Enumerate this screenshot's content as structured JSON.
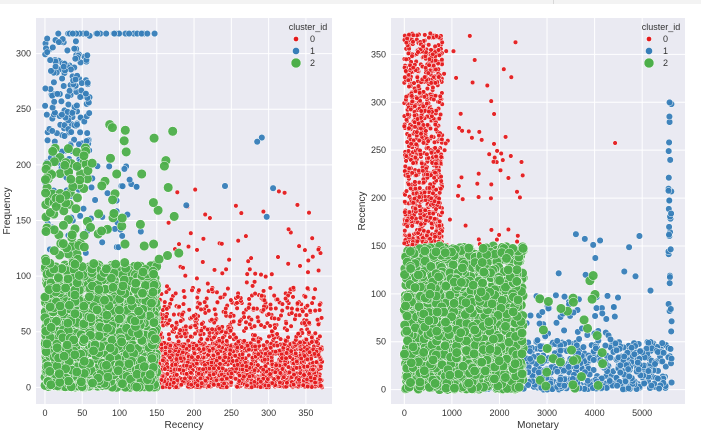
{
  "chart_data": [
    {
      "type": "scatter",
      "title": "",
      "xlabel": "Recency",
      "ylabel": "Frequency",
      "xlim": [
        -12,
        385
      ],
      "ylim": [
        -15,
        332
      ],
      "xticks": [
        0,
        50,
        100,
        150,
        200,
        250,
        300,
        350
      ],
      "yticks": [
        0,
        50,
        100,
        150,
        200,
        250,
        300
      ],
      "grid": true,
      "legend": {
        "title": "cluster_id",
        "position": "top-right",
        "entries": [
          "0",
          "1",
          "2"
        ]
      },
      "series": [
        {
          "name": "0",
          "color": "#e41a1c",
          "size": 2.3,
          "regions": [
            [
              150,
              372,
              0,
              40,
              1400
            ],
            [
              150,
              372,
              40,
              90,
              380
            ],
            [
              160,
              372,
              90,
              180,
              60
            ]
          ]
        },
        {
          "name": "1",
          "color": "#377eb8",
          "size": 3.3,
          "regions": [
            [
              0,
              60,
              200,
              318,
              170
            ],
            [
              0,
              130,
              120,
              200,
              60
            ],
            [
              0,
              150,
              318,
              318,
              30
            ],
            [
              140,
              310,
              150,
              240,
              6
            ]
          ]
        },
        {
          "name": "2",
          "color": "#4daf4a",
          "size": 4.8,
          "regions": [
            [
              0,
              150,
              0,
              110,
              1700
            ],
            [
              0,
              60,
              110,
              220,
              90
            ],
            [
              60,
              180,
              110,
              240,
              40
            ]
          ]
        }
      ]
    },
    {
      "type": "scatter",
      "title": "",
      "xlabel": "Monetary",
      "ylabel": "Recency",
      "xlim": [
        -280,
        5900
      ],
      "ylim": [
        -15,
        388
      ],
      "xticks": [
        0,
        1000,
        2000,
        3000,
        4000,
        5000
      ],
      "yticks": [
        0,
        50,
        100,
        150,
        200,
        250,
        300,
        350
      ],
      "grid": true,
      "legend": {
        "title": "cluster_id",
        "position": "top-right",
        "entries": [
          "0",
          "1",
          "2"
        ]
      },
      "series": [
        {
          "name": "0",
          "color": "#e41a1c",
          "size": 2.3,
          "regions": [
            [
              0,
              800,
              150,
              372,
              900
            ],
            [
              800,
              2500,
              150,
              372,
              60
            ],
            [
              4400,
              4500,
              250,
              260,
              1
            ]
          ]
        },
        {
          "name": "1",
          "color": "#377eb8",
          "size": 3.3,
          "regions": [
            [
              1500,
              5500,
              0,
              50,
              700
            ],
            [
              2000,
              4500,
              50,
              100,
              60
            ],
            [
              5550,
              5620,
              0,
              300,
              40
            ],
            [
              3000,
              5500,
              100,
              170,
              12
            ]
          ]
        },
        {
          "name": "2",
          "color": "#4daf4a",
          "size": 4.8,
          "regions": [
            [
              0,
              2500,
              0,
              150,
              1600
            ],
            [
              2500,
              4200,
              0,
              120,
              30
            ]
          ]
        }
      ]
    }
  ]
}
